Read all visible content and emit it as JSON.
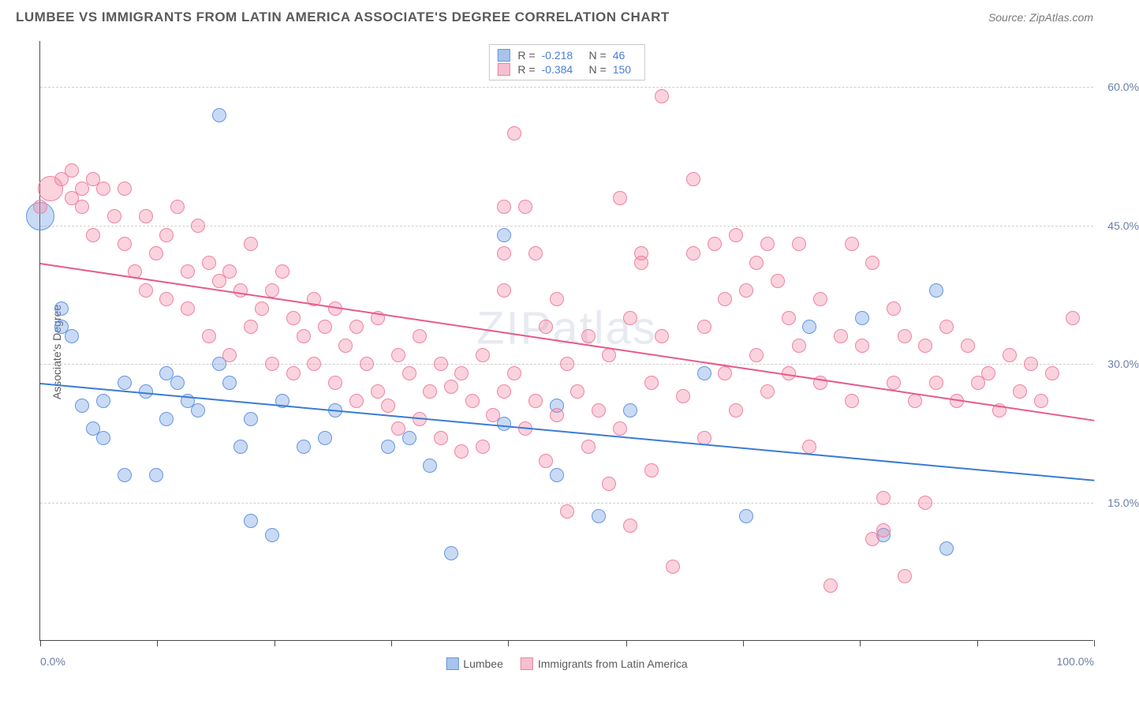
{
  "title": "LUMBEE VS IMMIGRANTS FROM LATIN AMERICA ASSOCIATE'S DEGREE CORRELATION CHART",
  "source": "Source: ZipAtlas.com",
  "watermark": "ZIPatlas",
  "yaxis_title": "Associate's Degree",
  "chart": {
    "type": "scatter",
    "xlim": [
      0,
      100
    ],
    "ylim": [
      0,
      65
    ],
    "background_color": "#ffffff",
    "grid_color": "#cfcfcf",
    "grid_dash": "4,4",
    "axis_color": "#4a4a4a",
    "tick_label_color": "#6a7fa8",
    "tick_fontsize": 14,
    "y_gridlines": [
      15,
      30,
      45,
      60
    ],
    "y_tick_labels": [
      "15.0%",
      "30.0%",
      "45.0%",
      "60.0%"
    ],
    "x_ticks": [
      0,
      11.1,
      22.2,
      33.3,
      44.4,
      55.6,
      66.7,
      77.8,
      88.9,
      100
    ],
    "x_labels": [
      {
        "x": 0,
        "text": "0.0%"
      },
      {
        "x": 100,
        "text": "100.0%"
      }
    ],
    "marker_radius": 9,
    "marker_opacity_fill": 0.35,
    "marker_stroke_width": 1
  },
  "series": [
    {
      "name": "Lumbee",
      "color_fill": "rgba(100,150,225,0.35)",
      "color_stroke": "#6496e1",
      "swatch_fill": "#a8c4ec",
      "swatch_stroke": "#6496e1",
      "R": "-0.218",
      "N": "46",
      "trend": {
        "y_start": 28,
        "y_end": 17.5,
        "color": "#3a7bd5"
      },
      "points": [
        [
          0,
          46,
          18
        ],
        [
          2,
          36
        ],
        [
          2,
          34
        ],
        [
          3,
          33
        ],
        [
          4,
          25.5
        ],
        [
          5,
          23
        ],
        [
          6,
          22
        ],
        [
          8,
          18
        ],
        [
          6,
          26
        ],
        [
          8,
          28
        ],
        [
          10,
          27
        ],
        [
          11,
          18
        ],
        [
          12,
          29
        ],
        [
          13,
          28
        ],
        [
          12,
          24
        ],
        [
          14,
          26
        ],
        [
          15,
          25
        ],
        [
          17,
          57
        ],
        [
          17,
          30
        ],
        [
          18,
          28
        ],
        [
          19,
          21
        ],
        [
          20,
          24
        ],
        [
          20,
          13
        ],
        [
          22,
          11.5
        ],
        [
          23,
          26
        ],
        [
          25,
          21
        ],
        [
          27,
          22
        ],
        [
          28,
          25
        ],
        [
          33,
          21
        ],
        [
          35,
          22
        ],
        [
          37,
          19
        ],
        [
          39,
          9.5
        ],
        [
          44,
          44
        ],
        [
          44,
          23.5
        ],
        [
          49,
          18
        ],
        [
          49,
          25.5
        ],
        [
          56,
          25
        ],
        [
          53,
          13.5
        ],
        [
          63,
          29
        ],
        [
          67,
          13.5
        ],
        [
          73,
          34
        ],
        [
          78,
          35
        ],
        [
          80,
          11.5
        ],
        [
          85,
          38
        ],
        [
          86,
          10
        ]
      ]
    },
    {
      "name": "Immigrants from Latin America",
      "color_fill": "rgba(240,130,160,0.35)",
      "color_stroke": "#f082a0",
      "swatch_fill": "#f7c0d0",
      "swatch_stroke": "#f082a0",
      "R": "-0.384",
      "N": "150",
      "trend": {
        "y_start": 41,
        "y_end": 24,
        "color": "#e85a8a"
      },
      "points": [
        [
          0,
          47
        ],
        [
          1,
          49,
          16
        ],
        [
          2,
          50
        ],
        [
          3,
          51
        ],
        [
          3,
          48
        ],
        [
          4,
          49
        ],
        [
          4,
          47
        ],
        [
          5,
          50
        ],
        [
          5,
          44
        ],
        [
          6,
          49
        ],
        [
          7,
          46
        ],
        [
          8,
          49
        ],
        [
          8,
          43
        ],
        [
          9,
          40
        ],
        [
          10,
          46
        ],
        [
          10,
          38
        ],
        [
          11,
          42
        ],
        [
          12,
          44
        ],
        [
          12,
          37
        ],
        [
          13,
          47
        ],
        [
          14,
          40
        ],
        [
          14,
          36
        ],
        [
          15,
          45
        ],
        [
          16,
          41
        ],
        [
          16,
          33
        ],
        [
          17,
          39
        ],
        [
          18,
          40
        ],
        [
          18,
          31
        ],
        [
          19,
          38
        ],
        [
          20,
          43
        ],
        [
          20,
          34
        ],
        [
          21,
          36
        ],
        [
          22,
          38
        ],
        [
          22,
          30
        ],
        [
          23,
          40
        ],
        [
          24,
          35
        ],
        [
          24,
          29
        ],
        [
          25,
          33
        ],
        [
          26,
          37
        ],
        [
          26,
          30
        ],
        [
          27,
          34
        ],
        [
          28,
          36
        ],
        [
          28,
          28
        ],
        [
          29,
          32
        ],
        [
          30,
          34
        ],
        [
          30,
          26
        ],
        [
          31,
          30
        ],
        [
          32,
          35
        ],
        [
          32,
          27
        ],
        [
          33,
          25.5
        ],
        [
          34,
          31
        ],
        [
          34,
          23
        ],
        [
          35,
          29
        ],
        [
          36,
          33
        ],
        [
          36,
          24
        ],
        [
          37,
          27
        ],
        [
          38,
          30
        ],
        [
          38,
          22
        ],
        [
          39,
          27.5
        ],
        [
          40,
          29
        ],
        [
          40,
          20.5
        ],
        [
          41,
          26
        ],
        [
          42,
          31
        ],
        [
          42,
          21
        ],
        [
          43,
          24.5
        ],
        [
          44,
          47
        ],
        [
          44,
          42
        ],
        [
          44,
          38
        ],
        [
          44,
          27
        ],
        [
          45,
          55
        ],
        [
          45,
          29
        ],
        [
          46,
          47
        ],
        [
          46,
          23
        ],
        [
          47,
          42
        ],
        [
          47,
          26
        ],
        [
          48,
          34
        ],
        [
          48,
          19.5
        ],
        [
          49,
          37
        ],
        [
          49,
          24.5
        ],
        [
          50,
          30
        ],
        [
          50,
          14
        ],
        [
          51,
          27
        ],
        [
          52,
          33
        ],
        [
          52,
          21
        ],
        [
          53,
          25
        ],
        [
          54,
          31
        ],
        [
          54,
          17
        ],
        [
          55,
          23
        ],
        [
          56,
          35
        ],
        [
          56,
          12.5
        ],
        [
          57,
          41
        ],
        [
          58,
          28
        ],
        [
          58,
          18.5
        ],
        [
          59,
          59
        ],
        [
          59,
          33
        ],
        [
          60,
          8
        ],
        [
          61,
          26.5
        ],
        [
          62,
          50
        ],
        [
          62,
          42
        ],
        [
          63,
          34
        ],
        [
          63,
          22
        ],
        [
          64,
          43
        ],
        [
          65,
          37
        ],
        [
          65,
          29
        ],
        [
          66,
          44
        ],
        [
          66,
          25
        ],
        [
          67,
          38
        ],
        [
          68,
          41
        ],
        [
          68,
          31
        ],
        [
          69,
          43
        ],
        [
          69,
          27
        ],
        [
          70,
          39
        ],
        [
          71,
          35
        ],
        [
          71,
          29
        ],
        [
          72,
          43
        ],
        [
          72,
          32
        ],
        [
          73,
          21
        ],
        [
          74,
          37
        ],
        [
          74,
          28
        ],
        [
          75,
          6
        ],
        [
          76,
          33
        ],
        [
          77,
          43
        ],
        [
          77,
          26
        ],
        [
          78,
          32
        ],
        [
          79,
          41
        ],
        [
          79,
          11
        ],
        [
          80,
          15.5
        ],
        [
          81,
          36
        ],
        [
          81,
          28
        ],
        [
          82,
          33
        ],
        [
          82,
          7
        ],
        [
          83,
          26
        ],
        [
          84,
          32
        ],
        [
          84,
          15
        ],
        [
          85,
          28
        ],
        [
          86,
          34
        ],
        [
          87,
          26
        ],
        [
          88,
          32
        ],
        [
          89,
          28
        ],
        [
          90,
          29
        ],
        [
          91,
          25
        ],
        [
          92,
          31
        ],
        [
          93,
          27
        ],
        [
          94,
          30
        ],
        [
          95,
          26
        ],
        [
          96,
          29
        ],
        [
          98,
          35
        ],
        [
          80,
          12
        ],
        [
          57,
          42
        ],
        [
          55,
          48
        ]
      ]
    }
  ],
  "legend_bottom": [
    {
      "swatch_fill": "#a8c4ec",
      "swatch_stroke": "#6496e1",
      "label": "Lumbee"
    },
    {
      "swatch_fill": "#f7c0d0",
      "swatch_stroke": "#f082a0",
      "label": "Immigrants from Latin America"
    }
  ]
}
